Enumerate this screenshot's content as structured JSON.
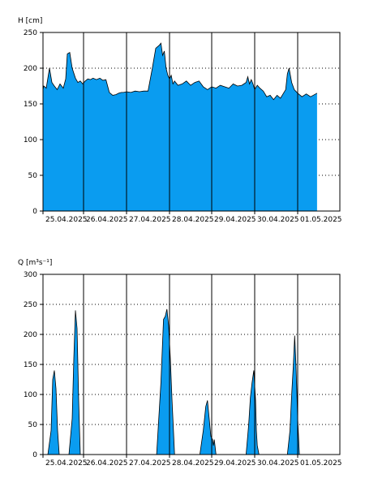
{
  "chart_data": [
    {
      "type": "area",
      "ylabel": "H [cm]",
      "ylim": [
        0,
        250
      ],
      "yticks": [
        0,
        50,
        100,
        150,
        200,
        250
      ],
      "xlim_days": [
        0,
        6.95
      ],
      "day_labels": [
        "25.04.2025",
        "26.04.2025",
        "27.04.2025",
        "28.04.2025",
        "29.04.2025",
        "30.04.2025",
        "01.05.2025"
      ],
      "grid": "dotted horizontal, solid vertical at midnight",
      "fill_color": "#0a9cf0",
      "series": [
        {
          "x": [
            0,
            0.02,
            0.08,
            0.16,
            0.22,
            0.28,
            0.35,
            0.42,
            0.5,
            0.56,
            0.6,
            0.66,
            0.72,
            0.8,
            0.86,
            0.92,
            0.98,
            1.04,
            1.1,
            1.16,
            1.22,
            1.3,
            1.38,
            1.45,
            1.52,
            1.6,
            1.68,
            1.75,
            1.82,
            1.88,
            1.93,
            2.0,
            2.1,
            2.2,
            2.3,
            2.4,
            2.5,
            2.6,
            2.68,
            2.76,
            2.8,
            2.84,
            2.88,
            2.92,
            2.96,
            3.0,
            3.04,
            3.08,
            3.12,
            3.2,
            3.3,
            3.4,
            3.5,
            3.6,
            3.7,
            3.8,
            3.9,
            4.0,
            4.1,
            4.2,
            4.3,
            4.4,
            4.5,
            4.6,
            4.7,
            4.8,
            4.84,
            4.88,
            4.92,
            4.96,
            5.0,
            5.06,
            5.12,
            5.2,
            5.28,
            5.36,
            5.44,
            5.52,
            5.6,
            5.66,
            5.72,
            5.76,
            5.8,
            5.86,
            5.92,
            6.0,
            6.1,
            6.2,
            6.3,
            6.45
          ],
          "y": [
            170,
            175,
            172,
            200,
            180,
            175,
            170,
            178,
            172,
            185,
            220,
            222,
            200,
            186,
            180,
            182,
            178,
            182,
            185,
            184,
            186,
            184,
            186,
            183,
            184,
            166,
            162,
            163,
            165,
            166,
            166,
            167,
            166,
            168,
            167,
            168,
            168,
            200,
            228,
            232,
            235,
            218,
            224,
            200,
            190,
            185,
            190,
            178,
            182,
            176,
            178,
            182,
            176,
            180,
            182,
            174,
            170,
            174,
            172,
            176,
            174,
            172,
            178,
            175,
            176,
            180,
            188,
            178,
            184,
            178,
            170,
            176,
            172,
            168,
            160,
            162,
            156,
            162,
            158,
            164,
            170,
            192,
            200,
            180,
            170,
            165,
            160,
            164,
            160,
            165
          ]
        }
      ]
    },
    {
      "type": "area",
      "ylabel": "Q [m³s⁻¹]",
      "ylim": [
        0,
        300
      ],
      "yticks": [
        0,
        50,
        100,
        150,
        200,
        250,
        300
      ],
      "xlim_days": [
        0,
        6.95
      ],
      "day_labels": [
        "25.04.2025",
        "26.04.2025",
        "27.04.2025",
        "28.04.2025",
        "29.04.2025",
        "30.04.2025",
        "01.05.2025"
      ],
      "grid": "dotted horizontal, solid vertical at midnight",
      "fill_color": "#0a9cf0",
      "series": [
        {
          "x": [
            0,
            0.12,
            0.2,
            0.24,
            0.28,
            0.32,
            0.36,
            0.4,
            0.64,
            0.72,
            0.76,
            0.8,
            0.84,
            0.88,
            0.92,
            2.7,
            2.8,
            2.86,
            2.9,
            2.94,
            2.98,
            3.02,
            3.06,
            3.1,
            3.12,
            3.72,
            3.8,
            3.86,
            3.9,
            3.94,
            3.98,
            4.02,
            4.04,
            4.06,
            4.1,
            4.8,
            4.86,
            4.9,
            4.94,
            4.98,
            5.02,
            5.04,
            5.06,
            5.1,
            5.76,
            5.82,
            5.86,
            5.9,
            5.93,
            5.96,
            6.0,
            6.04,
            6.95
          ],
          "y": [
            0,
            0,
            40,
            125,
            140,
            110,
            40,
            0,
            0,
            60,
            160,
            240,
            210,
            90,
            0,
            0,
            120,
            225,
            230,
            242,
            215,
            160,
            90,
            30,
            0,
            0,
            40,
            80,
            90,
            60,
            30,
            25,
            15,
            25,
            0,
            0,
            50,
            95,
            120,
            140,
            90,
            40,
            15,
            0,
            0,
            40,
            100,
            150,
            198,
            150,
            60,
            0,
            0
          ]
        }
      ]
    }
  ]
}
